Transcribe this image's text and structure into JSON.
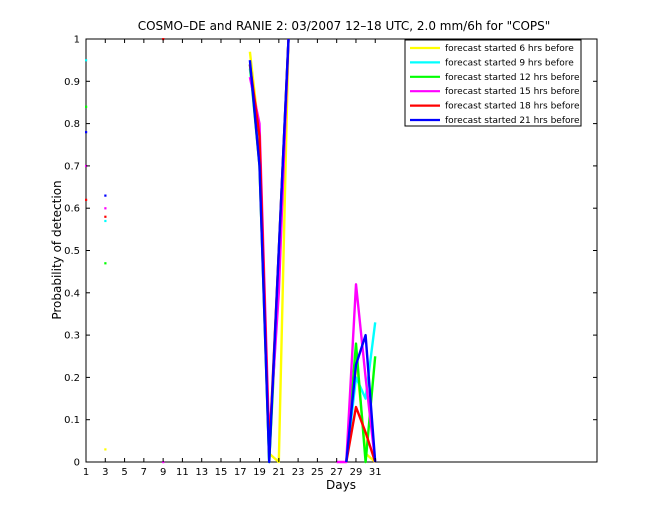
{
  "chart_data": {
    "type": "line",
    "title": "COSMO–DE and RANIE 2: 03/2007 12–18 UTC, 2.0 mm/6h for \"COPS\"",
    "xlabel": "Days",
    "ylabel": "Probability of detection",
    "xlim": [
      1,
      54
    ],
    "ylim": [
      0,
      1
    ],
    "xticks": [
      1,
      3,
      5,
      7,
      9,
      11,
      13,
      15,
      17,
      19,
      21,
      23,
      25,
      27,
      29,
      31
    ],
    "yticks": [
      0,
      0.1,
      0.2,
      0.3,
      0.4,
      0.5,
      0.6,
      0.7,
      0.8,
      0.9,
      1
    ],
    "ytick_labels": [
      "0",
      "0.1",
      "0.2",
      "0.3",
      "0.4",
      "0.5",
      "0.6",
      "0.7",
      "0.8",
      "0.9",
      "1"
    ],
    "legend_position": "top-right",
    "grid": false,
    "series": [
      {
        "name": "forecast started 6 hrs before",
        "color": "#ffff00",
        "points": [
          [
            3,
            0.03
          ],
          [
            18,
            0.97
          ],
          [
            19,
            0.77
          ],
          [
            20,
            0.02
          ],
          [
            21,
            0.0
          ],
          [
            22,
            1.0
          ],
          [
            28,
            0.0
          ],
          [
            29,
            0.25
          ],
          [
            30,
            0.02
          ],
          [
            31,
            0.0
          ]
        ]
      },
      {
        "name": "forecast started 9 hrs before",
        "color": "#00ffff",
        "points": [
          [
            1,
            0.95
          ],
          [
            3,
            0.57
          ],
          [
            18,
            0.93
          ],
          [
            19,
            0.75
          ],
          [
            20,
            0.0
          ],
          [
            21,
            0.5
          ],
          [
            22,
            1.0
          ],
          [
            28,
            0.0
          ],
          [
            29,
            0.2
          ],
          [
            30,
            0.15
          ],
          [
            31,
            0.33
          ]
        ]
      },
      {
        "name": "forecast started 12 hrs before",
        "color": "#00ff00",
        "points": [
          [
            1,
            0.84
          ],
          [
            3,
            0.47
          ],
          [
            18,
            0.94
          ],
          [
            19,
            0.7
          ],
          [
            20,
            0.0
          ],
          [
            21,
            0.45
          ],
          [
            22,
            1.0
          ],
          [
            28,
            0.0
          ],
          [
            29,
            0.28
          ],
          [
            30,
            0.0
          ],
          [
            31,
            0.25
          ]
        ]
      },
      {
        "name": "forecast started 15 hrs before",
        "color": "#ff00ff",
        "points": [
          [
            1,
            0.7
          ],
          [
            3,
            0.6
          ],
          [
            9,
            0.0
          ],
          [
            18,
            0.91
          ],
          [
            19,
            0.8
          ],
          [
            20,
            0.05
          ],
          [
            21,
            0.4
          ],
          [
            22,
            1.0
          ],
          [
            27,
            0.0
          ],
          [
            28,
            0.0
          ],
          [
            29,
            0.42
          ],
          [
            30,
            0.2
          ],
          [
            31,
            0.0
          ]
        ]
      },
      {
        "name": "forecast started 18 hrs before",
        "color": "#ff0000",
        "points": [
          [
            1,
            0.62
          ],
          [
            3,
            0.58
          ],
          [
            9,
            1.0
          ],
          [
            18,
            0.94
          ],
          [
            19,
            0.77
          ],
          [
            20,
            0.02
          ],
          [
            21,
            0.5
          ],
          [
            22,
            1.0
          ],
          [
            28,
            0.0
          ],
          [
            29,
            0.13
          ],
          [
            30,
            0.07
          ],
          [
            31,
            0.0
          ]
        ]
      },
      {
        "name": "forecast started 21 hrs before",
        "color": "#0000ff",
        "points": [
          [
            1,
            0.78
          ],
          [
            3,
            0.63
          ],
          [
            18,
            0.95
          ],
          [
            19,
            0.7
          ],
          [
            20,
            0.0
          ],
          [
            21,
            0.5
          ],
          [
            22,
            1.0
          ],
          [
            28,
            0.0
          ],
          [
            29,
            0.23
          ],
          [
            30,
            0.3
          ],
          [
            31,
            0.0
          ]
        ]
      }
    ]
  }
}
